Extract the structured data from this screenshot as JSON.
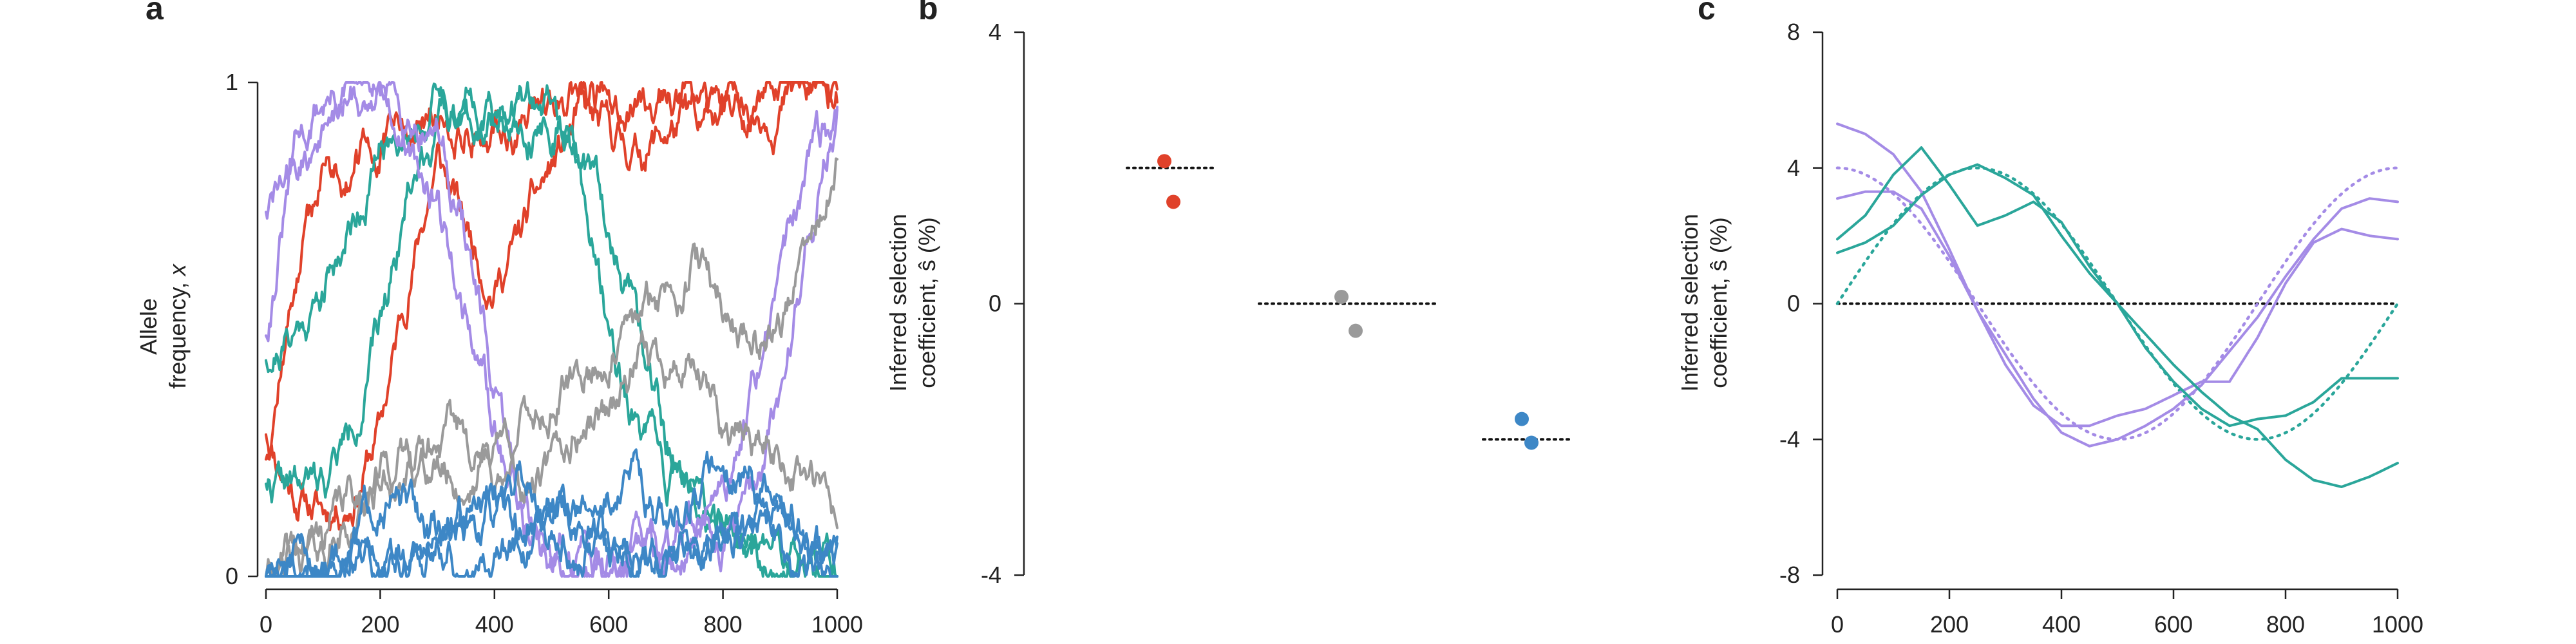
{
  "colors": {
    "red": "#e0412a",
    "teal": "#2aa69a",
    "purple": "#a48be6",
    "gray": "#9a9a9a",
    "blue": "#3d87c6",
    "axis": "#222222"
  },
  "chart_data": [
    {
      "panel": "a",
      "type": "line",
      "title": "",
      "xlabel": "",
      "ylabel_line1": "Allele",
      "ylabel_line2_text": "frequency, ",
      "ylabel_line2_var": "x",
      "xlim": [
        0,
        1000
      ],
      "ylim": [
        0,
        1
      ],
      "xticks": [
        "0",
        "200",
        "400",
        "600",
        "800",
        "1000"
      ],
      "yticks": [
        "0",
        "1"
      ],
      "grid": false,
      "series": [
        {
          "color": "red",
          "seed": 11,
          "x": [
            0,
            50,
            100,
            150,
            200,
            250,
            300,
            350,
            400,
            450,
            500,
            550,
            600,
            650,
            700,
            750,
            800,
            850,
            900,
            950,
            1000
          ],
          "values": [
            0.3,
            0.18,
            0.13,
            0.17,
            0.3,
            0.6,
            0.85,
            0.7,
            0.6,
            0.7,
            0.82,
            0.92,
            0.88,
            0.86,
            0.9,
            0.92,
            0.94,
            0.95,
            0.97,
            0.98,
            0.99
          ]
        },
        {
          "color": "red",
          "seed": 12,
          "x": [
            0,
            50,
            100,
            150,
            200,
            250,
            300,
            350,
            400,
            450,
            500,
            550,
            600,
            650,
            700,
            750,
            800,
            850,
            900,
            950,
            1000
          ],
          "values": [
            0.25,
            0.6,
            0.82,
            0.83,
            0.86,
            0.9,
            0.91,
            0.92,
            0.9,
            0.92,
            0.95,
            0.96,
            0.97,
            0.96,
            0.97,
            0.98,
            0.97,
            0.98,
            0.99,
            0.99,
            1.0
          ]
        },
        {
          "color": "teal",
          "seed": 21,
          "x": [
            0,
            50,
            100,
            150,
            200,
            250,
            300,
            350,
            400,
            450,
            500,
            550,
            600,
            650,
            700,
            750,
            800,
            850,
            900,
            950,
            1000
          ],
          "values": [
            0.45,
            0.5,
            0.58,
            0.72,
            0.86,
            0.93,
            0.97,
            0.96,
            0.95,
            0.97,
            0.95,
            0.8,
            0.5,
            0.3,
            0.2,
            0.15,
            0.1,
            0.06,
            0.03,
            0.02,
            0.01
          ]
        },
        {
          "color": "teal",
          "seed": 22,
          "x": [
            0,
            50,
            100,
            150,
            200,
            250,
            300,
            350,
            400,
            450,
            500,
            550,
            600,
            650,
            700,
            750,
            800,
            850,
            900,
            950,
            1000
          ],
          "values": [
            0.2,
            0.17,
            0.18,
            0.3,
            0.5,
            0.8,
            0.92,
            0.95,
            0.96,
            0.95,
            0.93,
            0.85,
            0.72,
            0.5,
            0.28,
            0.18,
            0.1,
            0.05,
            0.03,
            0.02,
            0.02
          ]
        },
        {
          "color": "purple",
          "seed": 31,
          "x": [
            0,
            50,
            100,
            150,
            200,
            250,
            300,
            350,
            400,
            450,
            500,
            550,
            600,
            650,
            700,
            750,
            800,
            850,
            900,
            950,
            1000
          ],
          "values": [
            0.5,
            0.85,
            0.96,
            0.98,
            0.96,
            0.95,
            0.92,
            0.7,
            0.35,
            0.12,
            0.05,
            0.02,
            0.01,
            0.02,
            0.03,
            0.05,
            0.08,
            0.15,
            0.35,
            0.7,
            0.95
          ]
        },
        {
          "color": "purple",
          "seed": 32,
          "x": [
            0,
            50,
            100,
            150,
            200,
            250,
            300,
            350,
            400,
            450,
            500,
            550,
            600,
            650,
            700,
            750,
            800,
            850,
            900,
            950,
            1000
          ],
          "values": [
            0.75,
            0.8,
            0.9,
            0.96,
            0.98,
            0.9,
            0.75,
            0.55,
            0.3,
            0.12,
            0.06,
            0.03,
            0.02,
            0.04,
            0.06,
            0.1,
            0.16,
            0.35,
            0.6,
            0.85,
            0.92
          ]
        },
        {
          "color": "gray",
          "seed": 41,
          "x": [
            0,
            50,
            100,
            150,
            200,
            250,
            300,
            350,
            400,
            450,
            500,
            550,
            600,
            650,
            700,
            750,
            800,
            850,
            900,
            950,
            1000
          ],
          "values": [
            0.0,
            0.03,
            0.08,
            0.16,
            0.22,
            0.25,
            0.22,
            0.18,
            0.28,
            0.32,
            0.35,
            0.4,
            0.45,
            0.5,
            0.58,
            0.65,
            0.55,
            0.48,
            0.52,
            0.65,
            0.82
          ]
        },
        {
          "color": "gray",
          "seed": 42,
          "x": [
            0,
            50,
            100,
            150,
            200,
            250,
            300,
            350,
            400,
            450,
            500,
            550,
            600,
            650,
            700,
            750,
            800,
            850,
            900,
            950,
            1000
          ],
          "values": [
            0.0,
            0.02,
            0.05,
            0.1,
            0.18,
            0.2,
            0.25,
            0.3,
            0.2,
            0.16,
            0.2,
            0.3,
            0.35,
            0.42,
            0.45,
            0.4,
            0.3,
            0.28,
            0.25,
            0.2,
            0.1
          ]
        },
        {
          "color": "blue",
          "seed": 51,
          "x": [
            0,
            50,
            100,
            150,
            200,
            250,
            300,
            350,
            400,
            450,
            500,
            550,
            600,
            650,
            700,
            750,
            800,
            850,
            900,
            950,
            1000
          ],
          "values": [
            0.0,
            0.01,
            0.03,
            0.08,
            0.19,
            0.12,
            0.08,
            0.1,
            0.15,
            0.22,
            0.18,
            0.12,
            0.16,
            0.22,
            0.1,
            0.18,
            0.24,
            0.2,
            0.12,
            0.06,
            0.05
          ]
        },
        {
          "color": "blue",
          "seed": 52,
          "x": [
            0,
            50,
            100,
            150,
            200,
            250,
            300,
            350,
            400,
            450,
            500,
            550,
            600,
            650,
            700,
            750,
            800,
            850,
            900,
            950,
            1000
          ],
          "values": [
            0.0,
            0.0,
            0.01,
            0.02,
            0.03,
            0.05,
            0.08,
            0.06,
            0.04,
            0.06,
            0.1,
            0.08,
            0.05,
            0.04,
            0.06,
            0.08,
            0.05,
            0.1,
            0.12,
            0.06,
            0.04
          ]
        },
        {
          "color": "blue",
          "seed": 53,
          "x": [
            0,
            50,
            100,
            150,
            200,
            250,
            300,
            350,
            400,
            450,
            500,
            550,
            600,
            650,
            700,
            750,
            800,
            850,
            900,
            950,
            1000
          ],
          "values": [
            0.01,
            0.02,
            0.01,
            0.04,
            0.06,
            0.03,
            0.05,
            0.1,
            0.12,
            0.08,
            0.14,
            0.1,
            0.06,
            0.05,
            0.04,
            0.03,
            0.06,
            0.08,
            0.05,
            0.03,
            0.02
          ]
        }
      ]
    },
    {
      "panel": "b",
      "type": "scatter",
      "title": "",
      "xlabel": "",
      "ylabel_line1": "Inferred selection",
      "ylabel_line2": "coefficient, ŝ (%)",
      "ylim": [
        -4,
        4
      ],
      "yticks": [
        "4",
        "0",
        "-4"
      ],
      "grid": false,
      "groups": [
        {
          "color": "red",
          "true_value": 2,
          "points": [
            2.1,
            1.5
          ]
        },
        {
          "color": "gray",
          "true_value": 0,
          "points": [
            0.1,
            -0.4
          ]
        },
        {
          "color": "blue",
          "true_value": -2,
          "points": [
            -1.7,
            -2.05
          ]
        }
      ]
    },
    {
      "panel": "c",
      "type": "line",
      "title": "",
      "xlabel": "",
      "ylabel_line1": "Inferred selection",
      "ylabel_line2": "coefficient, ŝ (%)",
      "xlim": [
        0,
        1000
      ],
      "ylim": [
        -8,
        8
      ],
      "xticks": [
        "0",
        "200",
        "400",
        "600",
        "800",
        "1000"
      ],
      "yticks": [
        "8",
        "4",
        "0",
        "-4",
        "-8"
      ],
      "grid": false,
      "zero_line": true,
      "true_curves": [
        {
          "color": "purple",
          "function": "4*cos(2*pi*x/1000)"
        },
        {
          "color": "teal",
          "function": "4*sin(2*pi*x/1000)"
        }
      ],
      "series": [
        {
          "color": "purple",
          "x": [
            0,
            50,
            100,
            150,
            200,
            250,
            300,
            350,
            400,
            450,
            500,
            550,
            600,
            650,
            700,
            750,
            800,
            850,
            900,
            950,
            1000
          ],
          "values": [
            5.3,
            5.0,
            4.4,
            3.3,
            1.6,
            -0.2,
            -1.5,
            -2.8,
            -3.8,
            -4.2,
            -4.0,
            -3.6,
            -3.1,
            -2.4,
            -1.4,
            -0.4,
            0.8,
            1.9,
            2.8,
            3.1,
            3.0
          ]
        },
        {
          "color": "purple",
          "x": [
            0,
            50,
            100,
            150,
            200,
            250,
            300,
            350,
            400,
            450,
            500,
            550,
            600,
            650,
            700,
            750,
            800,
            850,
            900,
            950,
            1000
          ],
          "values": [
            3.1,
            3.3,
            3.3,
            2.8,
            1.4,
            -0.2,
            -1.8,
            -3.0,
            -3.6,
            -3.6,
            -3.3,
            -3.1,
            -2.7,
            -2.3,
            -2.3,
            -1.0,
            0.6,
            1.8,
            2.2,
            2.0,
            1.9
          ]
        },
        {
          "color": "teal",
          "x": [
            0,
            50,
            100,
            150,
            200,
            250,
            300,
            350,
            400,
            450,
            500,
            550,
            600,
            650,
            700,
            750,
            800,
            850,
            900,
            950,
            1000
          ],
          "values": [
            1.5,
            1.8,
            2.3,
            3.2,
            3.8,
            4.1,
            3.7,
            3.2,
            2.0,
            0.9,
            0.0,
            -0.9,
            -1.8,
            -2.6,
            -3.3,
            -3.7,
            -4.6,
            -5.2,
            -5.4,
            -5.1,
            -4.7
          ]
        },
        {
          "color": "teal",
          "x": [
            0,
            50,
            100,
            150,
            200,
            250,
            300,
            350,
            400,
            450,
            500,
            550,
            600,
            650,
            700,
            750,
            800,
            850,
            900,
            950,
            1000
          ],
          "values": [
            1.9,
            2.6,
            3.8,
            4.6,
            3.5,
            2.3,
            2.6,
            3.0,
            2.4,
            1.1,
            0.0,
            -1.3,
            -2.3,
            -3.1,
            -3.6,
            -3.4,
            -3.3,
            -2.9,
            -2.2,
            -2.2,
            -2.2
          ]
        }
      ]
    }
  ]
}
